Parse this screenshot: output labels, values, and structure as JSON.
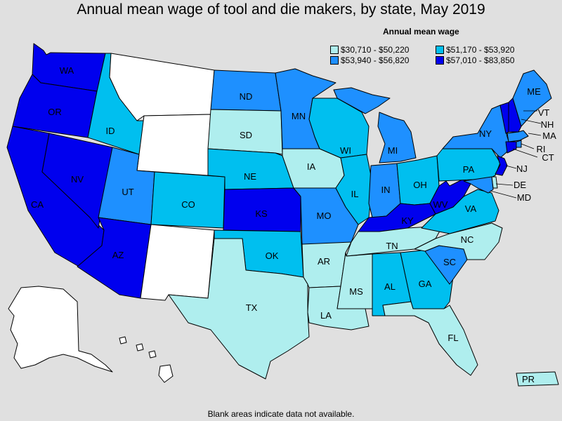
{
  "title": "Annual mean wage of tool and die makers, by state, May 2019",
  "legend": {
    "title": "Annual mean wage",
    "items": [
      {
        "label": "$30,710 - $50,220",
        "color": "#afeeee"
      },
      {
        "label": "$51,170 - $53,920",
        "color": "#00bfef"
      },
      {
        "label": "$53,940 - $56,820",
        "color": "#1e90ff"
      },
      {
        "label": "$57,010 - $83,850",
        "color": "#0000ee"
      }
    ]
  },
  "footnote": "Blank areas indicate data not available.",
  "colors": {
    "no_data": "#ffffff",
    "background": "#e0e0e0"
  },
  "states": {
    "WA": {
      "label": "WA",
      "tier": 3
    },
    "OR": {
      "label": "OR",
      "tier": 3
    },
    "CA": {
      "label": "CA",
      "tier": 3
    },
    "NV": {
      "label": "NV",
      "tier": 3
    },
    "ID": {
      "label": "ID",
      "tier": 1
    },
    "MT": {
      "label": "",
      "tier": null
    },
    "WY": {
      "label": "",
      "tier": null
    },
    "UT": {
      "label": "UT",
      "tier": 2
    },
    "AZ": {
      "label": "AZ",
      "tier": 3
    },
    "CO": {
      "label": "CO",
      "tier": 1
    },
    "NM": {
      "label": "",
      "tier": null
    },
    "ND": {
      "label": "ND",
      "tier": 2
    },
    "SD": {
      "label": "SD",
      "tier": 0
    },
    "NE": {
      "label": "NE",
      "tier": 1
    },
    "KS": {
      "label": "KS",
      "tier": 3
    },
    "OK": {
      "label": "OK",
      "tier": 1
    },
    "TX": {
      "label": "TX",
      "tier": 0
    },
    "MN": {
      "label": "MN",
      "tier": 2
    },
    "IA": {
      "label": "IA",
      "tier": 0
    },
    "MO": {
      "label": "MO",
      "tier": 2
    },
    "AR": {
      "label": "AR",
      "tier": 0
    },
    "LA": {
      "label": "LA",
      "tier": 0
    },
    "WI": {
      "label": "WI",
      "tier": 1
    },
    "IL": {
      "label": "IL",
      "tier": 1
    },
    "MI": {
      "label": "MI",
      "tier": 2
    },
    "IN": {
      "label": "IN",
      "tier": 2
    },
    "OH": {
      "label": "OH",
      "tier": 1
    },
    "KY": {
      "label": "KY",
      "tier": 3
    },
    "TN": {
      "label": "TN",
      "tier": 0
    },
    "MS": {
      "label": "MS",
      "tier": 0
    },
    "AL": {
      "label": "AL",
      "tier": 1
    },
    "GA": {
      "label": "GA",
      "tier": 1
    },
    "FL": {
      "label": "FL",
      "tier": 0
    },
    "SC": {
      "label": "SC",
      "tier": 2
    },
    "NC": {
      "label": "NC",
      "tier": 0
    },
    "VA": {
      "label": "VA",
      "tier": 1
    },
    "WV": {
      "label": "WV",
      "tier": 3
    },
    "PA": {
      "label": "PA",
      "tier": 1
    },
    "NY": {
      "label": "NY",
      "tier": 2
    },
    "VT": {
      "label": "VT",
      "tier": 3
    },
    "NH": {
      "label": "NH",
      "tier": 3
    },
    "ME": {
      "label": "ME",
      "tier": 2
    },
    "MA": {
      "label": "MA",
      "tier": 2
    },
    "RI": {
      "label": "RI",
      "tier": 2
    },
    "CT": {
      "label": "CT",
      "tier": 3
    },
    "NJ": {
      "label": "NJ",
      "tier": 3
    },
    "DE": {
      "label": "DE",
      "tier": 0
    },
    "MD": {
      "label": "MD",
      "tier": 2
    },
    "AK": {
      "label": "",
      "tier": null
    },
    "HI": {
      "label": "",
      "tier": null
    },
    "PR": {
      "label": "PR",
      "tier": 0
    }
  }
}
